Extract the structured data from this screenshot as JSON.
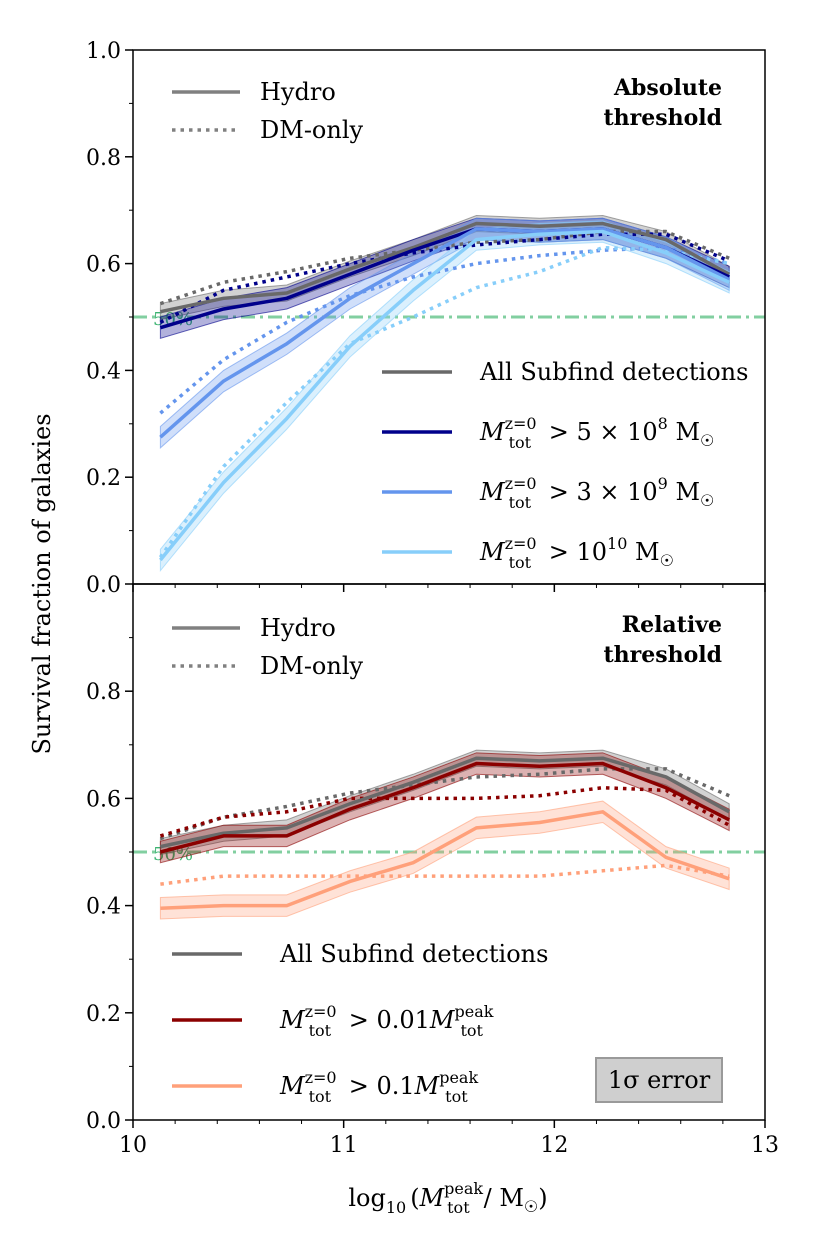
{
  "chart_data": [
    {
      "type": "line",
      "panel_title": [
        "Absolute",
        "threshold"
      ],
      "xlim": [
        10,
        13
      ],
      "ylim": [
        0.0,
        1.0
      ],
      "x_ticks": [
        "10",
        "11",
        "12",
        "13"
      ],
      "y_ticks": [
        "0.0",
        "0.2",
        "0.4",
        "0.6",
        "0.8",
        "1.0"
      ],
      "x": [
        10.13,
        10.43,
        10.73,
        11.03,
        11.33,
        11.63,
        11.93,
        12.23,
        12.53,
        12.83
      ],
      "reference_line": {
        "y": 0.5,
        "label": "50%",
        "color": "#82cfa0"
      },
      "style_legend": [
        {
          "label": "Hydro",
          "style": "solid"
        },
        {
          "label": "DM-only",
          "style": "dotted"
        }
      ],
      "series_legend": [
        {
          "label": "All Subfind detections",
          "color": "#696969"
        },
        {
          "label": "M_tot^{z=0} > 5×10^8 M☉",
          "color": "#00008b"
        },
        {
          "label": "M_tot^{z=0} > 3×10^9 M☉",
          "color": "#6495ed"
        },
        {
          "label": "M_tot^{z=0} > 10^10 M☉",
          "color": "#87cefa"
        }
      ],
      "series": [
        {
          "name": "All Subfind detections",
          "color": "#696969",
          "hydro": [
            0.51,
            0.535,
            0.545,
            0.59,
            0.63,
            0.675,
            0.67,
            0.675,
            0.645,
            0.58
          ],
          "hydro_err": 0.015,
          "dmo": [
            0.525,
            0.565,
            0.585,
            0.61,
            0.625,
            0.64,
            0.645,
            0.66,
            0.66,
            0.61
          ]
        },
        {
          "name": "M_tot^{z=0} > 5×10^8 M☉",
          "color": "#00008b",
          "hydro": [
            0.48,
            0.515,
            0.535,
            0.58,
            0.625,
            0.665,
            0.66,
            0.665,
            0.63,
            0.575
          ],
          "hydro_err": 0.02,
          "dmo": [
            0.49,
            0.55,
            0.575,
            0.6,
            0.62,
            0.635,
            0.645,
            0.655,
            0.655,
            0.605
          ]
        },
        {
          "name": "M_tot^{z=0} > 3×10^9 M☉",
          "color": "#6495ed",
          "hydro": [
            0.275,
            0.38,
            0.45,
            0.535,
            0.6,
            0.665,
            0.66,
            0.665,
            0.63,
            0.57
          ],
          "hydro_err": 0.02,
          "dmo": [
            0.32,
            0.42,
            0.49,
            0.54,
            0.575,
            0.6,
            0.615,
            0.625,
            0.63,
            0.6
          ]
        },
        {
          "name": "M_tot^{z=0} > 10^10 M☉",
          "color": "#87cefa",
          "hydro": [
            0.045,
            0.19,
            0.31,
            0.445,
            0.55,
            0.645,
            0.655,
            0.66,
            0.62,
            0.565
          ],
          "hydro_err": 0.02,
          "dmo": [
            0.05,
            0.22,
            0.34,
            0.45,
            0.5,
            0.555,
            0.585,
            0.63,
            0.625,
            0.6
          ]
        }
      ]
    },
    {
      "type": "line",
      "panel_title": [
        "Relative",
        "threshold"
      ],
      "xlim": [
        10,
        13
      ],
      "ylim": [
        0.0,
        1.0
      ],
      "x_ticks": [
        "10",
        "11",
        "12",
        "13"
      ],
      "y_ticks": [
        "0.0",
        "0.2",
        "0.4",
        "0.6",
        "0.8"
      ],
      "x": [
        10.13,
        10.43,
        10.73,
        11.03,
        11.33,
        11.63,
        11.93,
        12.23,
        12.53,
        12.83
      ],
      "reference_line": {
        "y": 0.5,
        "label": "50%",
        "color": "#82cfa0"
      },
      "style_legend": [
        {
          "label": "Hydro",
          "style": "solid"
        },
        {
          "label": "DM-only",
          "style": "dotted"
        }
      ],
      "series_legend": [
        {
          "label": "All Subfind detections",
          "color": "#696969"
        },
        {
          "label": "M_tot^{z=0} > 0.01 M_tot^{peak}",
          "color": "#8b0000"
        },
        {
          "label": "M_tot^{z=0} > 0.1 M_tot^{peak}",
          "color": "#ffa07a"
        }
      ],
      "error_box_label": "1σ error",
      "series": [
        {
          "name": "All Subfind detections",
          "color": "#696969",
          "hydro": [
            0.51,
            0.535,
            0.545,
            0.59,
            0.63,
            0.675,
            0.67,
            0.675,
            0.64,
            0.575
          ],
          "hydro_err": 0.015,
          "dmo": [
            0.525,
            0.565,
            0.585,
            0.61,
            0.625,
            0.64,
            0.645,
            0.655,
            0.655,
            0.605
          ]
        },
        {
          "name": "M_tot^{z=0} > 0.01 M_tot^{peak}",
          "color": "#8b0000",
          "hydro": [
            0.5,
            0.53,
            0.53,
            0.58,
            0.62,
            0.665,
            0.66,
            0.665,
            0.62,
            0.56
          ],
          "hydro_err": 0.02,
          "dmo": [
            0.53,
            0.565,
            0.575,
            0.6,
            0.6,
            0.6,
            0.605,
            0.62,
            0.615,
            0.55
          ]
        },
        {
          "name": "M_tot^{z=0} > 0.1 M_tot^{peak}",
          "color": "#ffa07a",
          "hydro": [
            0.395,
            0.4,
            0.4,
            0.445,
            0.48,
            0.545,
            0.555,
            0.575,
            0.49,
            0.45
          ],
          "hydro_err": 0.02,
          "dmo": [
            0.44,
            0.455,
            0.455,
            0.455,
            0.455,
            0.455,
            0.455,
            0.465,
            0.475,
            0.455
          ]
        }
      ]
    }
  ],
  "y_axis_label": "Survival fraction of galaxies",
  "x_axis_label_parts": {
    "log": "log",
    "log_sub": "10",
    "open": "(",
    "M": "M",
    "sub": "tot",
    "sup": "peak",
    "slash": "/ M",
    "sun": "☉",
    "close": ")"
  }
}
